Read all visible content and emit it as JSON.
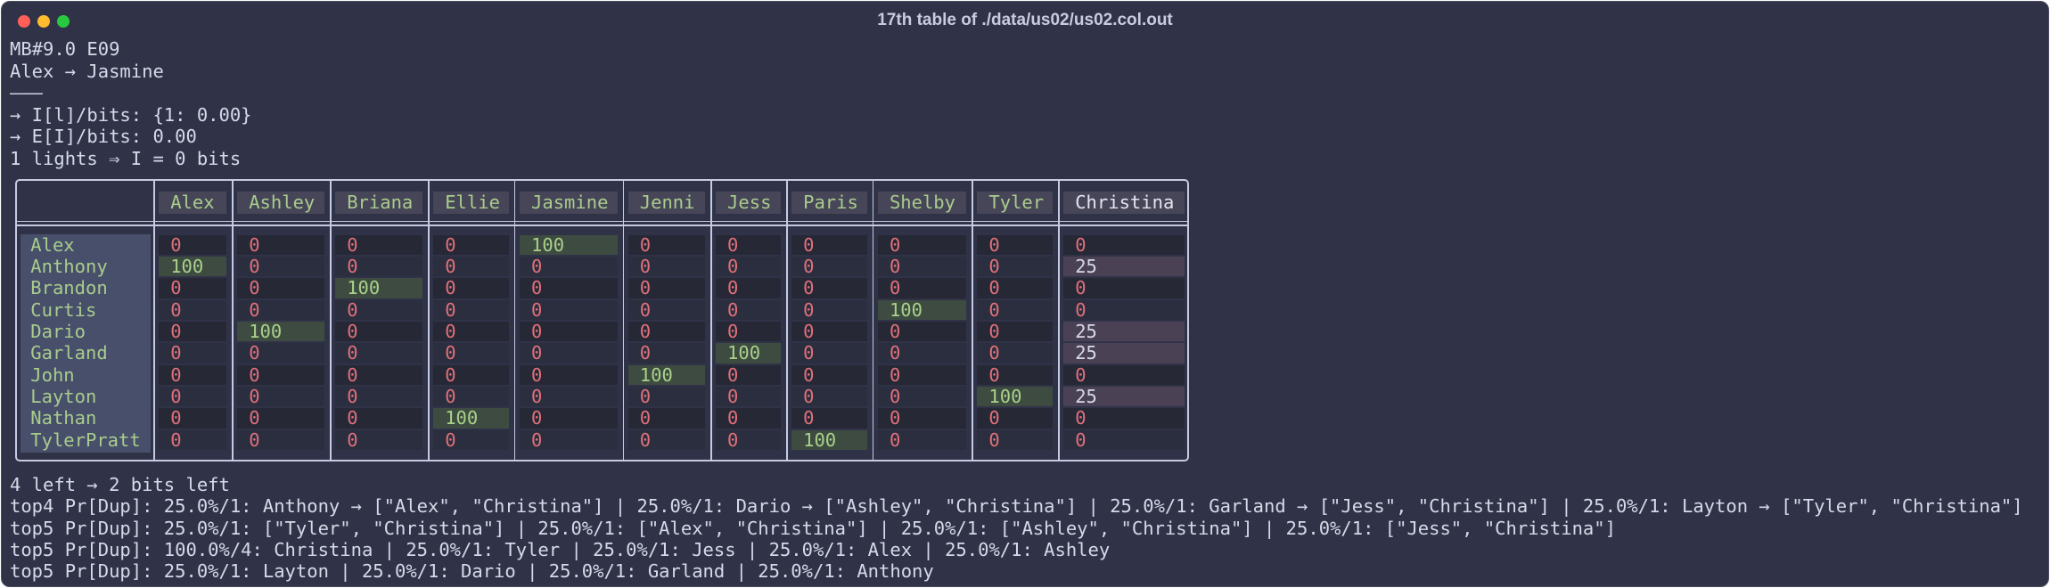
{
  "header": {
    "title": "17th table of ./data/us02/us02.col.out"
  },
  "intro": [
    "MB#9.0 E09",
    "Alex → Jasmine",
    "———",
    "→ I[l]/bits: {1: 0.00}",
    "→ E[I]/bits: 0.00",
    "1 lights ⇒ I = 0 bits"
  ],
  "table": {
    "columns": [
      "Alex",
      "Ashley",
      "Briana",
      "Ellie",
      "Jasmine",
      "Jenni",
      "Jess",
      "Paris",
      "Shelby",
      "Tyler",
      "Christina"
    ],
    "rows": [
      {
        "label": "Alex",
        "cells": [
          0,
          0,
          0,
          0,
          100,
          0,
          0,
          0,
          0,
          0,
          0
        ]
      },
      {
        "label": "Anthony",
        "cells": [
          100,
          0,
          0,
          0,
          0,
          0,
          0,
          0,
          0,
          0,
          25
        ]
      },
      {
        "label": "Brandon",
        "cells": [
          0,
          0,
          100,
          0,
          0,
          0,
          0,
          0,
          0,
          0,
          0
        ]
      },
      {
        "label": "Curtis",
        "cells": [
          0,
          0,
          0,
          0,
          0,
          0,
          0,
          0,
          100,
          0,
          0
        ]
      },
      {
        "label": "Dario",
        "cells": [
          0,
          100,
          0,
          0,
          0,
          0,
          0,
          0,
          0,
          0,
          25
        ]
      },
      {
        "label": "Garland",
        "cells": [
          0,
          0,
          0,
          0,
          0,
          0,
          100,
          0,
          0,
          0,
          25
        ]
      },
      {
        "label": "John",
        "cells": [
          0,
          0,
          0,
          0,
          0,
          100,
          0,
          0,
          0,
          0,
          0
        ]
      },
      {
        "label": "Layton",
        "cells": [
          0,
          0,
          0,
          0,
          0,
          0,
          0,
          0,
          0,
          100,
          25
        ]
      },
      {
        "label": "Nathan",
        "cells": [
          0,
          0,
          0,
          100,
          0,
          0,
          0,
          0,
          0,
          0,
          0
        ]
      },
      {
        "label": "TylerPratt",
        "cells": [
          0,
          0,
          0,
          0,
          0,
          0,
          0,
          100,
          0,
          0,
          0
        ]
      }
    ]
  },
  "footer": [
    "4 left → 2 bits left",
    "top4 Pr[Dup]: 25.0%/1: Anthony → [\"Alex\", \"Christina\"] | 25.0%/1: Dario → [\"Ashley\", \"Christina\"] | 25.0%/1: Garland → [\"Jess\", \"Christina\"] | 25.0%/1: Layton → [\"Tyler\", \"Christina\"]",
    "top5 Pr[Dup]: 25.0%/1: [\"Tyler\", \"Christina\"] | 25.0%/1: [\"Alex\", \"Christina\"] | 25.0%/1: [\"Ashley\", \"Christina\"] | 25.0%/1: [\"Jess\", \"Christina\"]",
    "top5 Pr[Dup]: 100.0%/4: Christina | 25.0%/1: Tyler | 25.0%/1: Jess | 25.0%/1: Alex | 25.0%/1: Ashley",
    "top5 Pr[Dup]: 25.0%/1: Layton | 25.0%/1: Dario | 25.0%/1: Garland | 25.0%/1: Anthony"
  ]
}
